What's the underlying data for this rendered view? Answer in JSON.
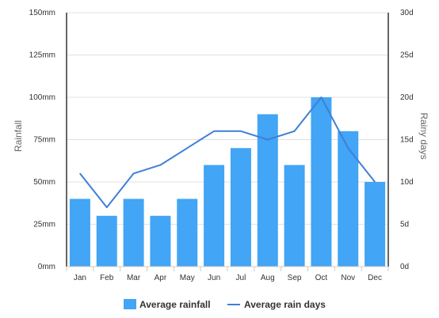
{
  "chart_data": {
    "type": "bar",
    "categories": [
      "Jan",
      "Feb",
      "Mar",
      "Apr",
      "May",
      "Jun",
      "Jul",
      "Aug",
      "Sep",
      "Oct",
      "Nov",
      "Dec"
    ],
    "series": [
      {
        "name": "Average rainfall",
        "type": "bar",
        "axis": "left",
        "color": "#42a5f5",
        "values": [
          40,
          30,
          40,
          30,
          40,
          60,
          70,
          90,
          60,
          100,
          80,
          50
        ]
      },
      {
        "name": "Average rain days",
        "type": "line",
        "axis": "right",
        "color": "#3f7fd8",
        "values": [
          11,
          7,
          11,
          12,
          14,
          16,
          16,
          15,
          16,
          20,
          14,
          10
        ]
      }
    ],
    "ylabel": "Rainfall",
    "y2label": "Rainy days",
    "ylim": [
      0,
      150
    ],
    "y2lim": [
      0,
      30
    ],
    "yticks": [
      "0mm",
      "25mm",
      "50mm",
      "75mm",
      "100mm",
      "125mm",
      "150mm"
    ],
    "y2ticks": [
      "0d",
      "5d",
      "10d",
      "15d",
      "20d",
      "25d",
      "30d"
    ],
    "grid": true,
    "legend_position": "bottom"
  }
}
